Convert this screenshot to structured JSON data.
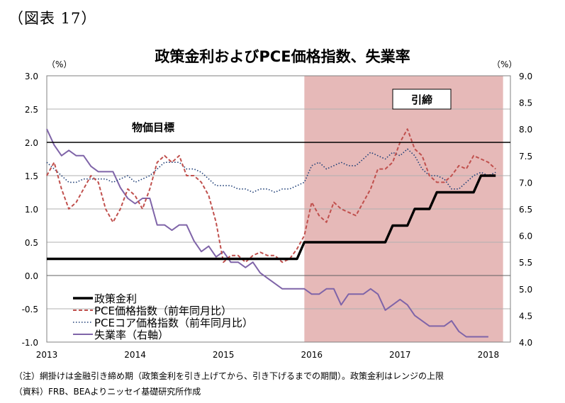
{
  "figure_number": "（図表 17）",
  "notes": [
    "（注）網掛けは金融引き締め期（政策金利を引き上げてから、引き下げるまでの期間）。政策金利はレンジの上限",
    "（資料）FRB、BEAよりニッセイ基礎研究所作成"
  ],
  "chart_data": {
    "type": "line",
    "title": "政策金利およびPCE価格指数、失業率",
    "unit_left": "（%）",
    "unit_right": "（%）",
    "ylim_left": [
      -1.0,
      3.0
    ],
    "ylim_right": [
      4.0,
      9.0
    ],
    "xlim": [
      2013.0,
      2018.25
    ],
    "y_ticks_left": [
      "3.0",
      "2.5",
      "2.0",
      "1.5",
      "1.0",
      "0.5",
      "0.0",
      "-0.5",
      "-1.0"
    ],
    "y_ticks_right": [
      "9.0",
      "8.5",
      "8.0",
      "7.5",
      "7.0",
      "6.5",
      "6.0",
      "5.5",
      "5.0",
      "4.5",
      "4.0"
    ],
    "x_ticks": [
      "2013",
      "2014",
      "2015",
      "2016",
      "2017",
      "2018"
    ],
    "grid": true,
    "legend_position": "bottom-left",
    "annotations": {
      "target_label": "物価目標",
      "target_value": 2.0,
      "tightening_label": "引締",
      "tightening_start": "2015-12",
      "tightening_end": "2018-03",
      "shade_color": "#e6b9b8"
    },
    "series": [
      {
        "name": "政策金利",
        "axis": "left",
        "color": "#000000",
        "style": "solid-bold",
        "values": [
          [
            "2013-01",
            0.25
          ],
          [
            "2015-11",
            0.25
          ],
          [
            "2015-12",
            0.5
          ],
          [
            "2016-11",
            0.5
          ],
          [
            "2016-12",
            0.75
          ],
          [
            "2017-02",
            0.75
          ],
          [
            "2017-03",
            1.0
          ],
          [
            "2017-05",
            1.0
          ],
          [
            "2017-06",
            1.25
          ],
          [
            "2017-11",
            1.25
          ],
          [
            "2017-12",
            1.5
          ],
          [
            "2018-02",
            1.5
          ]
        ]
      },
      {
        "name": "PCE価格指数（前年同月比）",
        "axis": "left",
        "color": "#c0504d",
        "style": "dashed",
        "values": [
          [
            "2013-01",
            1.5
          ],
          [
            "2013-02",
            1.7
          ],
          [
            "2013-03",
            1.3
          ],
          [
            "2013-04",
            1.0
          ],
          [
            "2013-05",
            1.1
          ],
          [
            "2013-06",
            1.3
          ],
          [
            "2013-07",
            1.5
          ],
          [
            "2013-08",
            1.4
          ],
          [
            "2013-09",
            1.0
          ],
          [
            "2013-10",
            0.8
          ],
          [
            "2013-11",
            1.0
          ],
          [
            "2013-12",
            1.3
          ],
          [
            "2014-01",
            1.2
          ],
          [
            "2014-02",
            1.0
          ],
          [
            "2014-03",
            1.3
          ],
          [
            "2014-04",
            1.7
          ],
          [
            "2014-05",
            1.8
          ],
          [
            "2014-06",
            1.7
          ],
          [
            "2014-07",
            1.8
          ],
          [
            "2014-08",
            1.5
          ],
          [
            "2014-09",
            1.5
          ],
          [
            "2014-10",
            1.4
          ],
          [
            "2014-11",
            1.2
          ],
          [
            "2014-12",
            0.8
          ],
          [
            "2015-01",
            0.2
          ],
          [
            "2015-02",
            0.3
          ],
          [
            "2015-03",
            0.3
          ],
          [
            "2015-04",
            0.2
          ],
          [
            "2015-05",
            0.3
          ],
          [
            "2015-06",
            0.35
          ],
          [
            "2015-07",
            0.3
          ],
          [
            "2015-08",
            0.3
          ],
          [
            "2015-09",
            0.2
          ],
          [
            "2015-10",
            0.25
          ],
          [
            "2015-11",
            0.4
          ],
          [
            "2015-12",
            0.6
          ],
          [
            "2016-01",
            1.1
          ],
          [
            "2016-02",
            0.9
          ],
          [
            "2016-03",
            0.8
          ],
          [
            "2016-04",
            1.1
          ],
          [
            "2016-05",
            1.0
          ],
          [
            "2016-06",
            0.95
          ],
          [
            "2016-07",
            0.9
          ],
          [
            "2016-08",
            1.1
          ],
          [
            "2016-09",
            1.3
          ],
          [
            "2016-10",
            1.6
          ],
          [
            "2016-11",
            1.6
          ],
          [
            "2016-12",
            1.7
          ],
          [
            "2017-01",
            2.0
          ],
          [
            "2017-02",
            2.2
          ],
          [
            "2017-03",
            1.9
          ],
          [
            "2017-04",
            1.8
          ],
          [
            "2017-05",
            1.5
          ],
          [
            "2017-06",
            1.4
          ],
          [
            "2017-07",
            1.4
          ],
          [
            "2017-08",
            1.5
          ],
          [
            "2017-09",
            1.65
          ],
          [
            "2017-10",
            1.6
          ],
          [
            "2017-11",
            1.8
          ],
          [
            "2017-12",
            1.75
          ],
          [
            "2018-01",
            1.7
          ],
          [
            "2018-02",
            1.6
          ]
        ]
      },
      {
        "name": "PCEコア価格指数（前年同月比）",
        "axis": "left",
        "color": "#1f3f77",
        "style": "dotted",
        "values": [
          [
            "2013-01",
            1.7
          ],
          [
            "2013-02",
            1.6
          ],
          [
            "2013-03",
            1.5
          ],
          [
            "2013-04",
            1.4
          ],
          [
            "2013-05",
            1.4
          ],
          [
            "2013-06",
            1.45
          ],
          [
            "2013-07",
            1.45
          ],
          [
            "2013-08",
            1.45
          ],
          [
            "2013-09",
            1.45
          ],
          [
            "2013-10",
            1.4
          ],
          [
            "2013-11",
            1.45
          ],
          [
            "2013-12",
            1.5
          ],
          [
            "2014-01",
            1.4
          ],
          [
            "2014-02",
            1.45
          ],
          [
            "2014-03",
            1.5
          ],
          [
            "2014-04",
            1.6
          ],
          [
            "2014-05",
            1.7
          ],
          [
            "2014-06",
            1.7
          ],
          [
            "2014-07",
            1.7
          ],
          [
            "2014-08",
            1.6
          ],
          [
            "2014-09",
            1.6
          ],
          [
            "2014-10",
            1.55
          ],
          [
            "2014-11",
            1.45
          ],
          [
            "2014-12",
            1.35
          ],
          [
            "2015-01",
            1.35
          ],
          [
            "2015-02",
            1.35
          ],
          [
            "2015-03",
            1.3
          ],
          [
            "2015-04",
            1.3
          ],
          [
            "2015-05",
            1.25
          ],
          [
            "2015-06",
            1.3
          ],
          [
            "2015-07",
            1.3
          ],
          [
            "2015-08",
            1.25
          ],
          [
            "2015-09",
            1.3
          ],
          [
            "2015-10",
            1.3
          ],
          [
            "2015-11",
            1.35
          ],
          [
            "2015-12",
            1.4
          ],
          [
            "2016-01",
            1.65
          ],
          [
            "2016-02",
            1.7
          ],
          [
            "2016-03",
            1.6
          ],
          [
            "2016-04",
            1.65
          ],
          [
            "2016-05",
            1.7
          ],
          [
            "2016-06",
            1.65
          ],
          [
            "2016-07",
            1.65
          ],
          [
            "2016-08",
            1.75
          ],
          [
            "2016-09",
            1.85
          ],
          [
            "2016-10",
            1.8
          ],
          [
            "2016-11",
            1.75
          ],
          [
            "2016-12",
            1.85
          ],
          [
            "2017-01",
            1.8
          ],
          [
            "2017-02",
            1.9
          ],
          [
            "2017-03",
            1.8
          ],
          [
            "2017-04",
            1.6
          ],
          [
            "2017-05",
            1.5
          ],
          [
            "2017-06",
            1.5
          ],
          [
            "2017-07",
            1.45
          ],
          [
            "2017-08",
            1.3
          ],
          [
            "2017-09",
            1.3
          ],
          [
            "2017-10",
            1.4
          ],
          [
            "2017-11",
            1.5
          ],
          [
            "2017-12",
            1.55
          ],
          [
            "2018-01",
            1.5
          ],
          [
            "2018-02",
            1.55
          ]
        ]
      },
      {
        "name": "失業率（右軸）",
        "axis": "right",
        "color": "#7f64a8",
        "style": "solid",
        "values": [
          [
            "2013-01",
            8.0
          ],
          [
            "2013-02",
            7.7
          ],
          [
            "2013-03",
            7.5
          ],
          [
            "2013-04",
            7.6
          ],
          [
            "2013-05",
            7.5
          ],
          [
            "2013-06",
            7.5
          ],
          [
            "2013-07",
            7.3
          ],
          [
            "2013-08",
            7.2
          ],
          [
            "2013-09",
            7.2
          ],
          [
            "2013-10",
            7.2
          ],
          [
            "2013-11",
            6.9
          ],
          [
            "2013-12",
            6.7
          ],
          [
            "2014-01",
            6.6
          ],
          [
            "2014-02",
            6.7
          ],
          [
            "2014-03",
            6.7
          ],
          [
            "2014-04",
            6.2
          ],
          [
            "2014-05",
            6.2
          ],
          [
            "2014-06",
            6.1
          ],
          [
            "2014-07",
            6.2
          ],
          [
            "2014-08",
            6.2
          ],
          [
            "2014-09",
            5.9
          ],
          [
            "2014-10",
            5.7
          ],
          [
            "2014-11",
            5.8
          ],
          [
            "2014-12",
            5.6
          ],
          [
            "2015-01",
            5.7
          ],
          [
            "2015-02",
            5.5
          ],
          [
            "2015-03",
            5.5
          ],
          [
            "2015-04",
            5.4
          ],
          [
            "2015-05",
            5.5
          ],
          [
            "2015-06",
            5.3
          ],
          [
            "2015-07",
            5.2
          ],
          [
            "2015-08",
            5.1
          ],
          [
            "2015-09",
            5.0
          ],
          [
            "2015-10",
            5.0
          ],
          [
            "2015-11",
            5.0
          ],
          [
            "2015-12",
            5.0
          ],
          [
            "2016-01",
            4.9
          ],
          [
            "2016-02",
            4.9
          ],
          [
            "2016-03",
            5.0
          ],
          [
            "2016-04",
            5.0
          ],
          [
            "2016-05",
            4.7
          ],
          [
            "2016-06",
            4.9
          ],
          [
            "2016-07",
            4.9
          ],
          [
            "2016-08",
            4.9
          ],
          [
            "2016-09",
            5.0
          ],
          [
            "2016-10",
            4.9
          ],
          [
            "2016-11",
            4.6
          ],
          [
            "2016-12",
            4.7
          ],
          [
            "2017-01",
            4.8
          ],
          [
            "2017-02",
            4.7
          ],
          [
            "2017-03",
            4.5
          ],
          [
            "2017-04",
            4.4
          ],
          [
            "2017-05",
            4.3
          ],
          [
            "2017-06",
            4.3
          ],
          [
            "2017-07",
            4.3
          ],
          [
            "2017-08",
            4.4
          ],
          [
            "2017-09",
            4.2
          ],
          [
            "2017-10",
            4.1
          ],
          [
            "2017-11",
            4.1
          ],
          [
            "2017-12",
            4.1
          ],
          [
            "2018-01",
            4.1
          ]
        ]
      }
    ]
  }
}
